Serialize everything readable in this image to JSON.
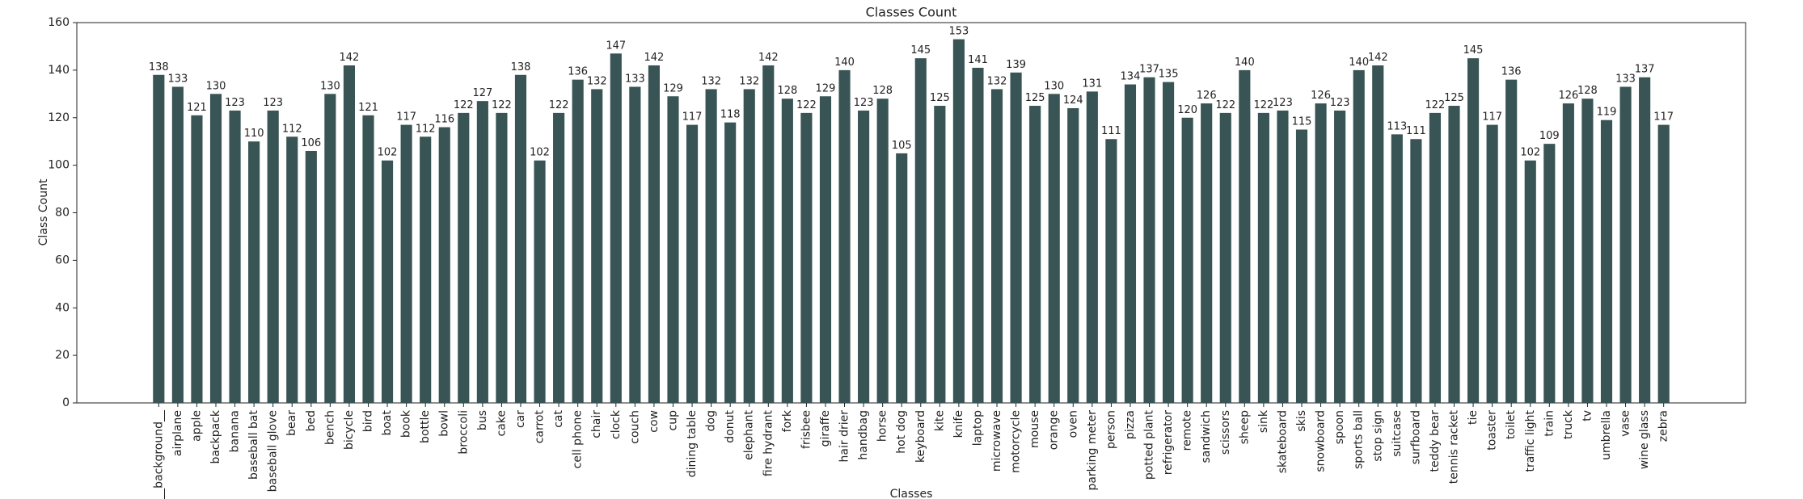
{
  "chart_data": {
    "type": "bar",
    "title": "Classes Count",
    "x_label": "Classes",
    "y_label": "Class Count",
    "categories": [
      "__background__",
      "airplane",
      "apple",
      "backpack",
      "banana",
      "baseball bat",
      "baseball glove",
      "bear",
      "bed",
      "bench",
      "bicycle",
      "bird",
      "boat",
      "book",
      "bottle",
      "bowl",
      "broccoli",
      "bus",
      "cake",
      "car",
      "carrot",
      "cat",
      "cell phone",
      "chair",
      "clock",
      "couch",
      "cow",
      "cup",
      "dining table",
      "dog",
      "donut",
      "elephant",
      "fire hydrant",
      "fork",
      "frisbee",
      "giraffe",
      "hair drier",
      "handbag",
      "horse",
      "hot dog",
      "keyboard",
      "kite",
      "knife",
      "laptop",
      "microwave",
      "motorcycle",
      "mouse",
      "orange",
      "oven",
      "parking meter",
      "person",
      "pizza",
      "potted plant",
      "refrigerator",
      "remote",
      "sandwich",
      "scissors",
      "sheep",
      "sink",
      "skateboard",
      "skis",
      "snowboard",
      "spoon",
      "sports ball",
      "stop sign",
      "suitcase",
      "surfboard",
      "teddy bear",
      "tennis racket",
      "tie",
      "toaster",
      "toilet",
      "traffic light",
      "train",
      "truck",
      "tv",
      "umbrella",
      "vase",
      "wine glass",
      "zebra"
    ],
    "values": [
      138,
      133,
      121,
      130,
      123,
      110,
      123,
      112,
      106,
      130,
      142,
      121,
      102,
      117,
      112,
      116,
      122,
      127,
      122,
      138,
      102,
      122,
      136,
      132,
      147,
      133,
      142,
      129,
      117,
      132,
      118,
      132,
      142,
      128,
      122,
      129,
      140,
      123,
      128,
      105,
      145,
      125,
      153,
      141,
      132,
      139,
      125,
      130,
      124,
      131,
      111,
      134,
      137,
      135,
      120,
      126,
      122,
      140,
      122,
      123,
      115,
      126,
      123,
      140,
      142,
      113,
      111,
      122,
      125,
      145,
      117,
      136,
      102,
      109,
      126,
      128,
      119,
      133,
      137,
      117
    ],
    "color": "#385454",
    "ylim": [
      0,
      160
    ],
    "yticks": [
      0,
      20,
      40,
      60,
      80,
      100,
      120,
      140,
      160
    ],
    "grid": false
  }
}
